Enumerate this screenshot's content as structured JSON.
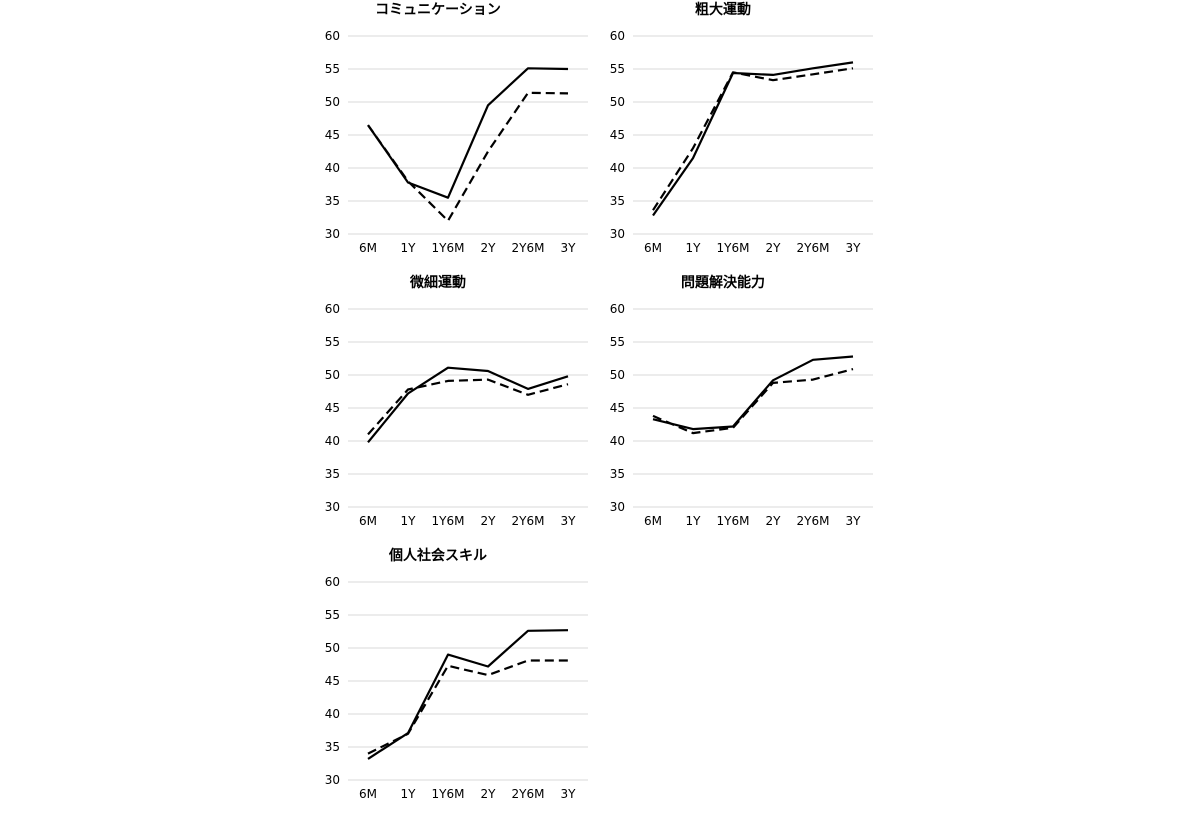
{
  "chart_data": [
    {
      "type": "line",
      "title": "コミュニケーション",
      "categories": [
        "6M",
        "1Y",
        "1Y6M",
        "2Y",
        "2Y6M",
        "3Y"
      ],
      "ylim": [
        30,
        60
      ],
      "yticks": [
        30,
        35,
        40,
        45,
        50,
        55,
        60
      ],
      "grid": true,
      "series": [
        {
          "style": "solid",
          "values": [
            46.5,
            37.8,
            35.5,
            49.5,
            55.1,
            55.0
          ]
        },
        {
          "style": "dashed",
          "values": [
            46.5,
            38.0,
            32.0,
            42.5,
            51.4,
            51.3
          ]
        }
      ]
    },
    {
      "type": "line",
      "title": "粗大運動",
      "categories": [
        "6M",
        "1Y",
        "1Y6M",
        "2Y",
        "2Y6M",
        "3Y"
      ],
      "ylim": [
        30,
        60
      ],
      "yticks": [
        30,
        35,
        40,
        45,
        50,
        55,
        60
      ],
      "grid": true,
      "series": [
        {
          "style": "solid",
          "values": [
            32.8,
            41.5,
            54.4,
            54.1,
            55.1,
            56.0
          ]
        },
        {
          "style": "dashed",
          "values": [
            33.6,
            43.0,
            54.5,
            53.3,
            54.2,
            55.1
          ]
        }
      ]
    },
    {
      "type": "line",
      "title": "微細運動",
      "categories": [
        "6M",
        "1Y",
        "1Y6M",
        "2Y",
        "2Y6M",
        "3Y"
      ],
      "ylim": [
        30,
        60
      ],
      "yticks": [
        30,
        35,
        40,
        45,
        50,
        55,
        60
      ],
      "grid": true,
      "series": [
        {
          "style": "solid",
          "values": [
            39.8,
            47.2,
            51.1,
            50.6,
            47.9,
            49.8
          ]
        },
        {
          "style": "dashed",
          "values": [
            41.0,
            47.8,
            49.1,
            49.3,
            47.0,
            48.6
          ]
        }
      ]
    },
    {
      "type": "line",
      "title": "問題解決能力",
      "categories": [
        "6M",
        "1Y",
        "1Y6M",
        "2Y",
        "2Y6M",
        "3Y"
      ],
      "ylim": [
        30,
        60
      ],
      "yticks": [
        30,
        35,
        40,
        45,
        50,
        55,
        60
      ],
      "grid": true,
      "series": [
        {
          "style": "solid",
          "values": [
            43.3,
            41.8,
            42.2,
            49.2,
            52.3,
            52.8
          ]
        },
        {
          "style": "dashed",
          "values": [
            43.8,
            41.2,
            42.0,
            48.8,
            49.3,
            50.9
          ]
        }
      ]
    },
    {
      "type": "line",
      "title": "個人社会スキル",
      "categories": [
        "6M",
        "1Y",
        "1Y6M",
        "2Y",
        "2Y6M",
        "3Y"
      ],
      "ylim": [
        30,
        60
      ],
      "yticks": [
        30,
        35,
        40,
        45,
        50,
        55,
        60
      ],
      "grid": true,
      "series": [
        {
          "style": "solid",
          "values": [
            33.2,
            37.1,
            49.0,
            47.2,
            52.6,
            52.7
          ]
        },
        {
          "style": "dashed",
          "values": [
            34.0,
            37.0,
            47.3,
            45.9,
            48.1,
            48.1
          ]
        }
      ]
    }
  ]
}
